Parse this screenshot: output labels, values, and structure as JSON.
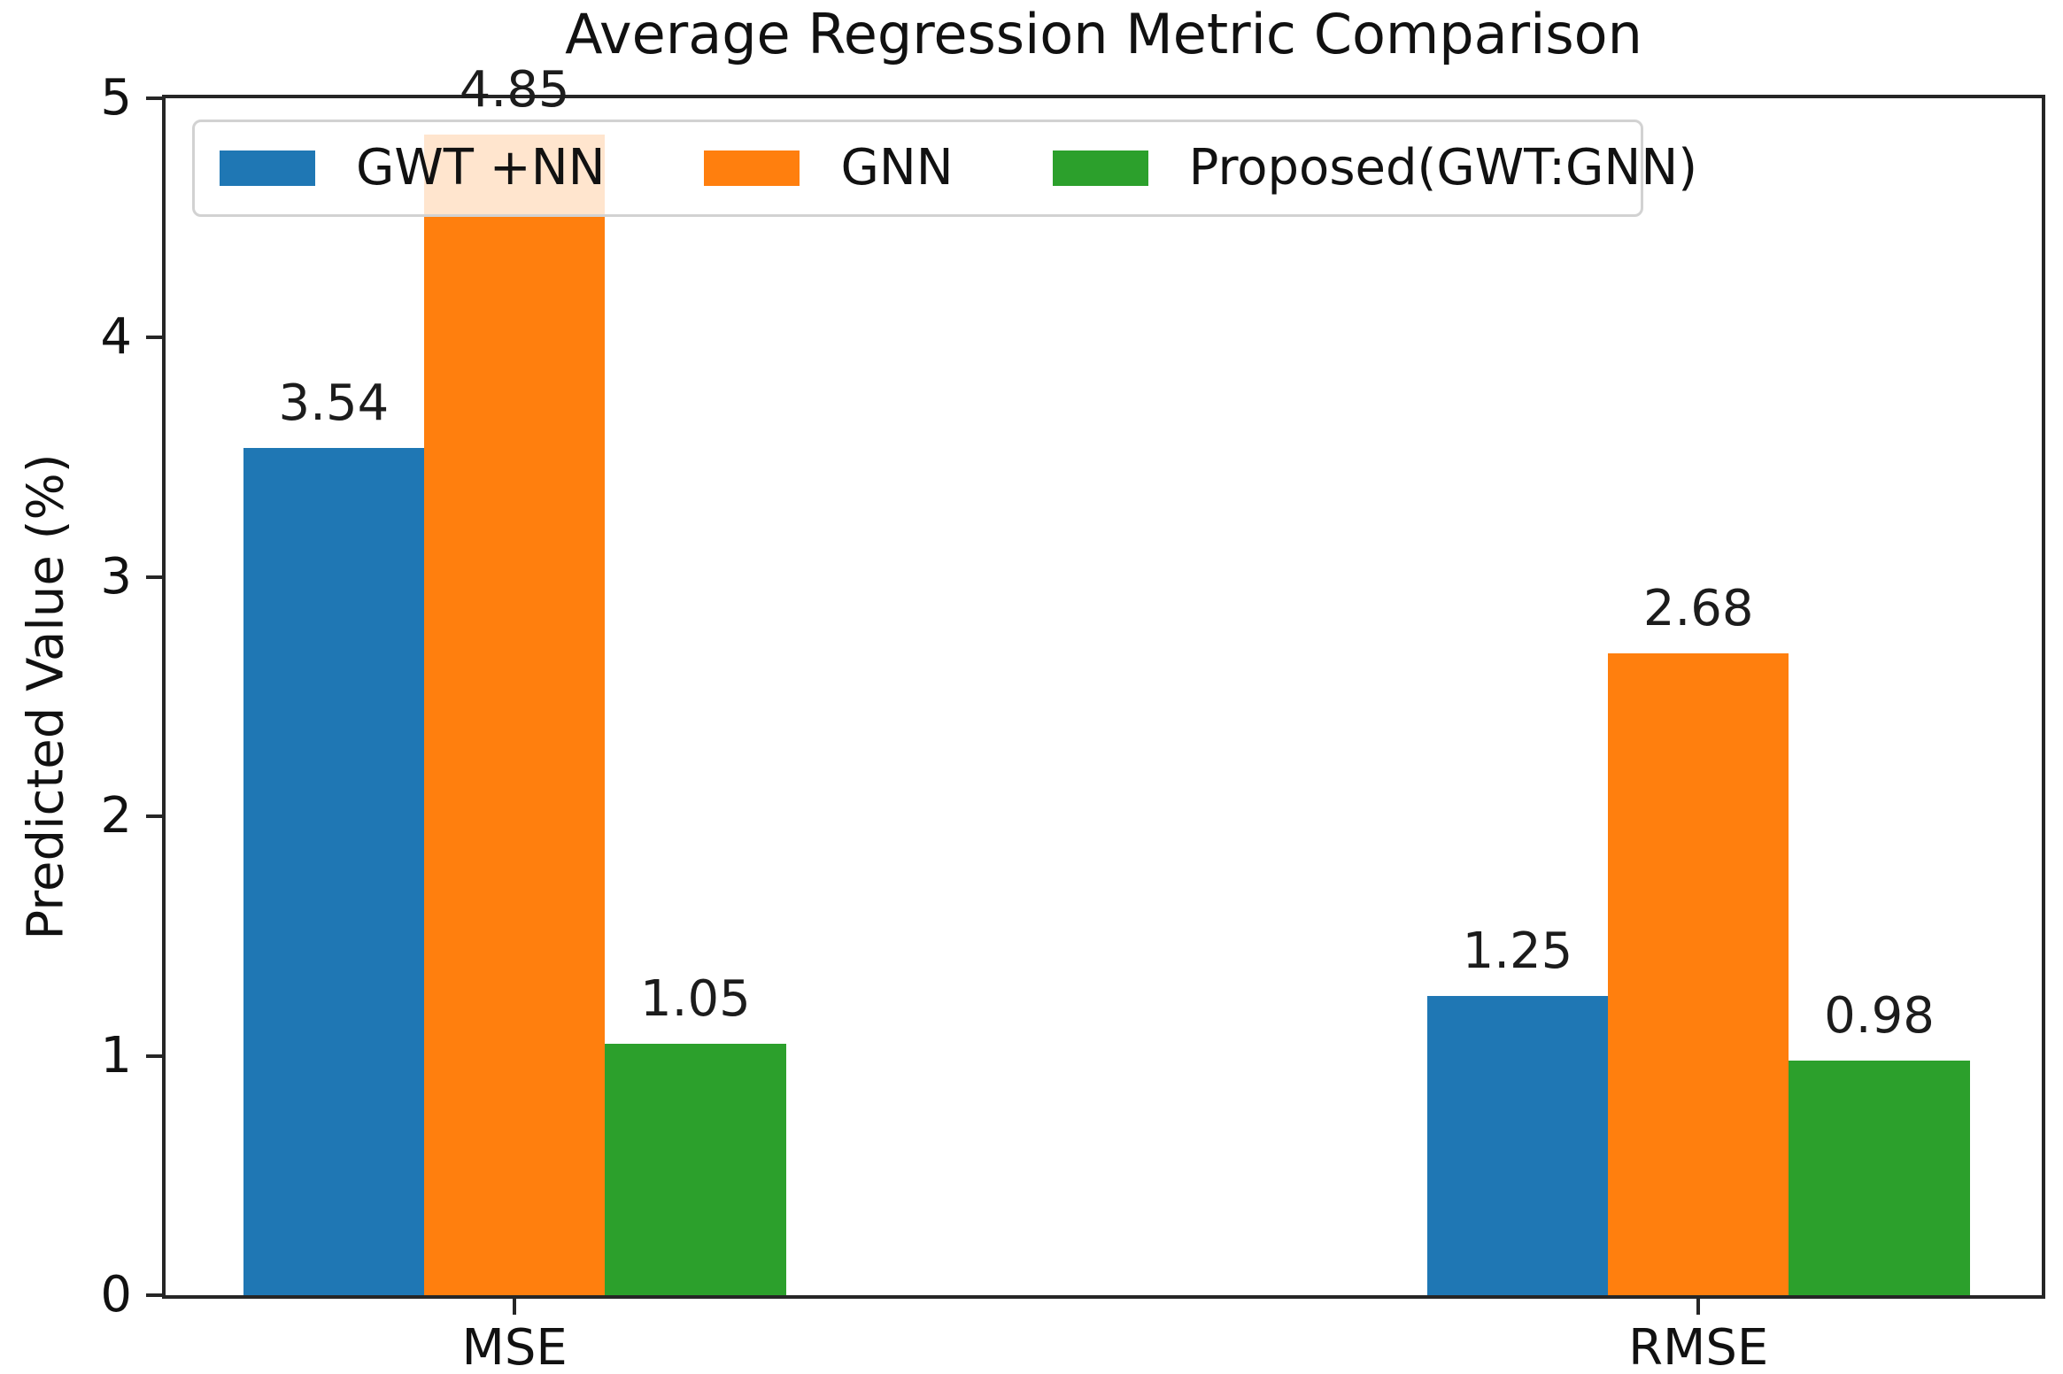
{
  "chart_data": {
    "type": "bar",
    "title": "Average Regression Metric Comparison",
    "xlabel": "",
    "ylabel": "Predicted Value (%)",
    "categories": [
      "MSE",
      "RMSE"
    ],
    "series": [
      {
        "name": "GWT +NN",
        "color": "#1f77b4",
        "values": [
          3.54,
          1.25
        ],
        "labels": [
          "3.54",
          "1.25"
        ]
      },
      {
        "name": "GNN",
        "color": "#ff7f0e",
        "values": [
          4.85,
          2.68
        ],
        "labels": [
          "4.85",
          "2.68"
        ]
      },
      {
        "name": "Proposed(GWT:GNN)",
        "color": "#2ca02c",
        "values": [
          1.05,
          0.98
        ],
        "labels": [
          "1.05",
          "0.98"
        ]
      }
    ],
    "ylim": [
      0,
      5
    ],
    "yticks": [
      "0",
      "1",
      "2",
      "3",
      "4",
      "5"
    ],
    "xticks": [
      "MSE",
      "RMSE"
    ],
    "grid": false,
    "legend_position": "upper left",
    "legend_columns": 3,
    "bar_labels_shown": true
  }
}
